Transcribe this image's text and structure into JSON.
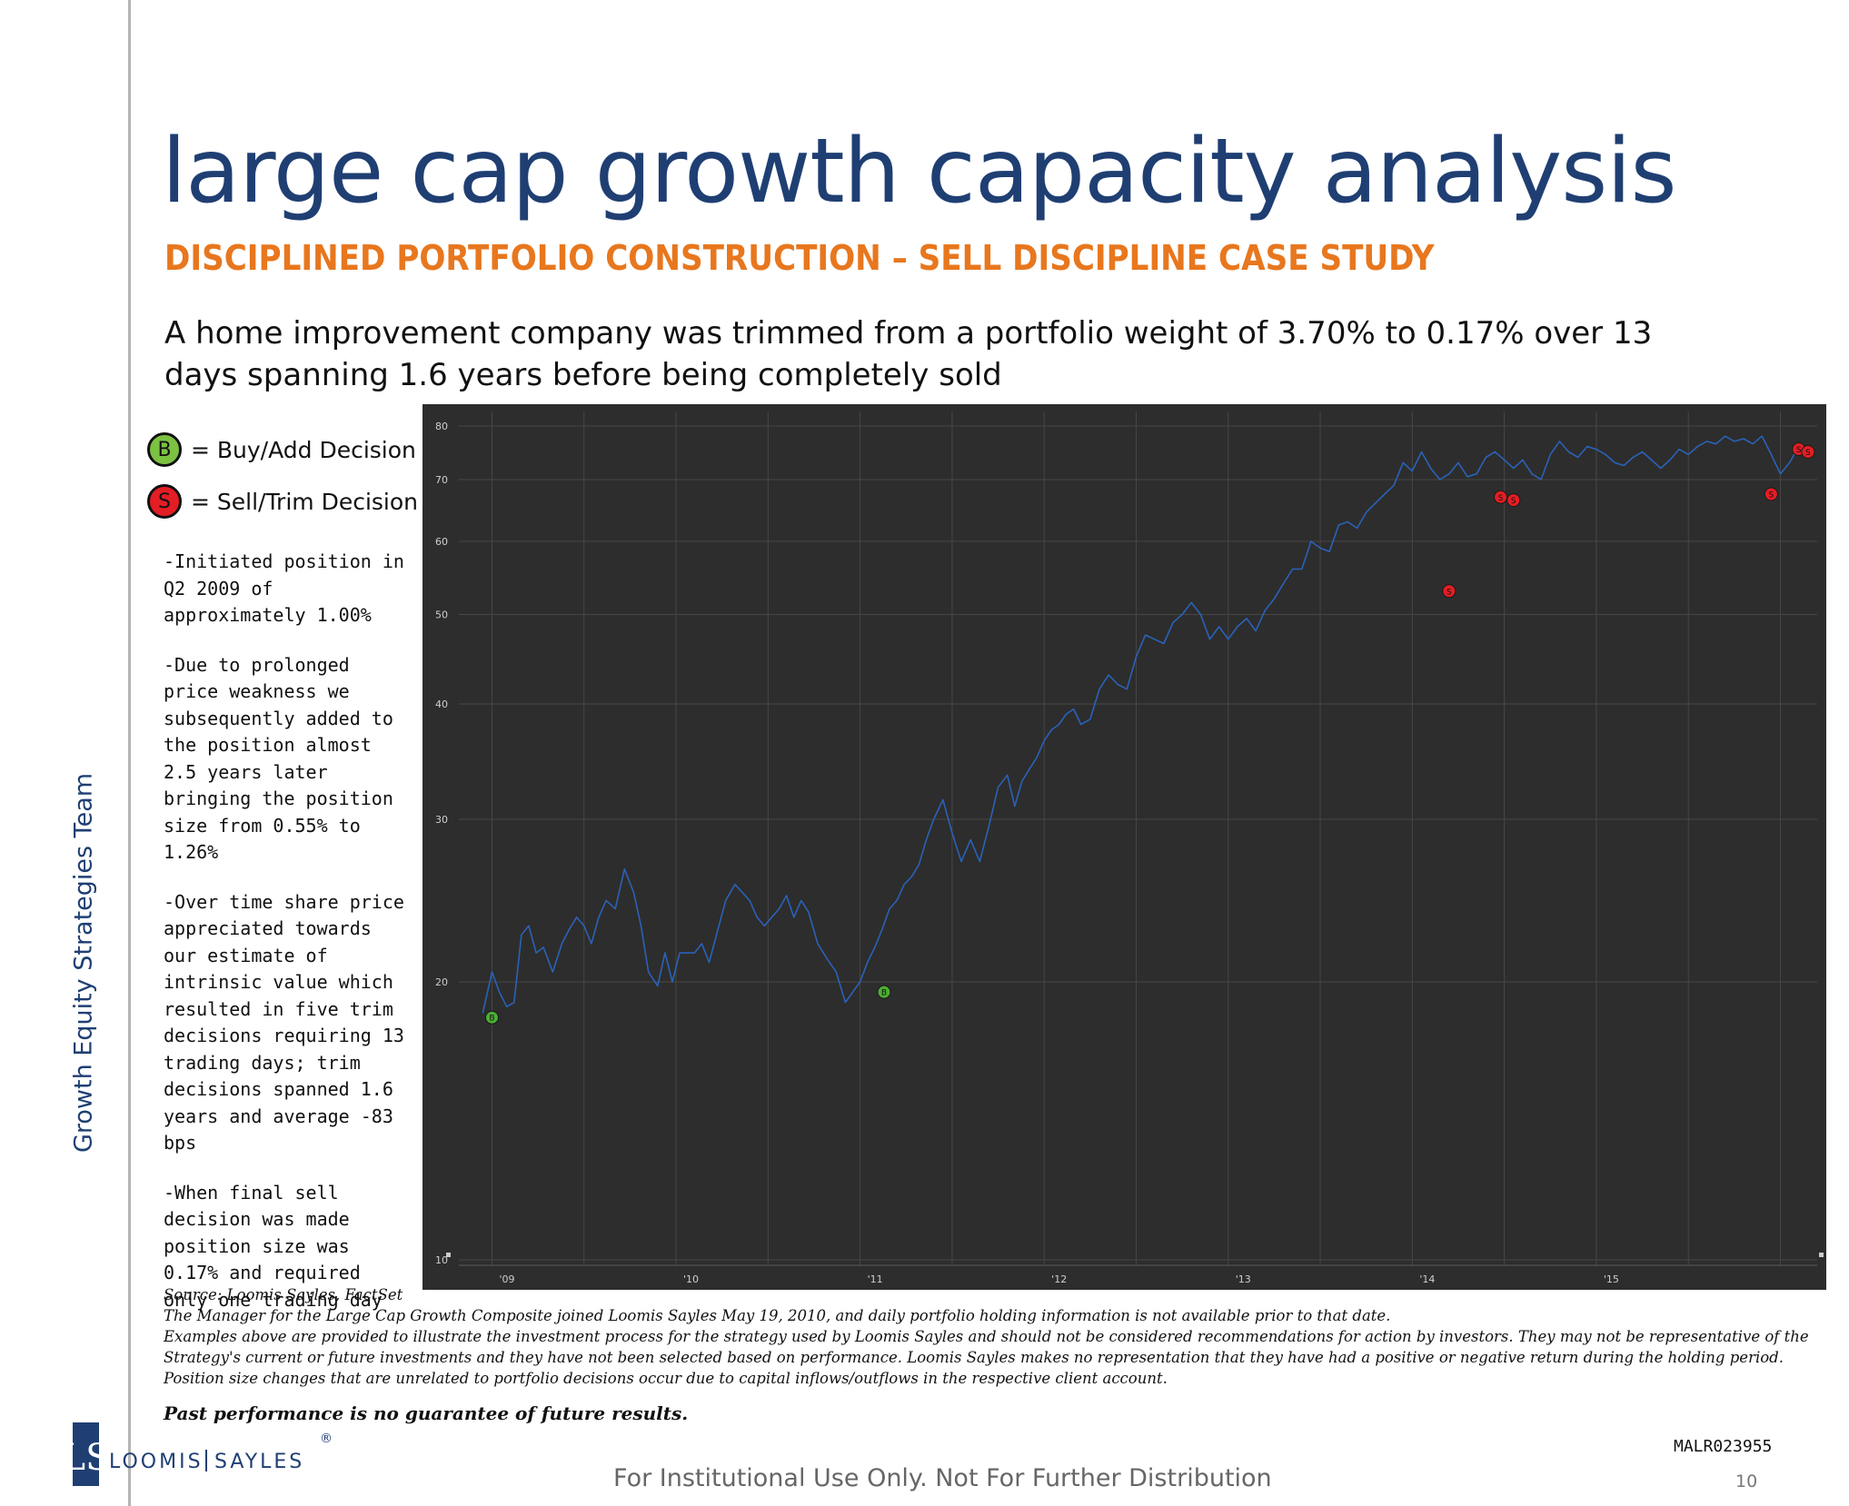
{
  "side_label": "Growth Equity Strategies Team",
  "title": "large cap growth capacity analysis",
  "subtitle": "DISCIPLINED PORTFOLIO CONSTRUCTION – SELL DISCIPLINE CASE STUDY",
  "headline": "A home improvement company was trimmed from a portfolio weight of 3.70% to 0.17% over 13 days spanning 1.6 years before being completely sold",
  "legend": [
    {
      "symbol": "B",
      "text": "= Buy/Add Decision",
      "color": "#7cc242"
    },
    {
      "symbol": "S",
      "text": "= Sell/Trim Decision",
      "color": "#e31e24"
    }
  ],
  "bullets": [
    "-Initiated position in Q2 2009 of approximately 1.00%",
    "-Due to prolonged price weakness we subsequently added to the position almost 2.5 years later bringing the position size from 0.55% to 1.26%",
    "-Over time share price appreciated towards our estimate of intrinsic value which resulted in five trim decisions requiring 13 trading days; trim decisions spanned 1.6 years and average -83 bps",
    "-When final sell decision was made position size was 0.17% and required only one trading day"
  ],
  "chart_data": {
    "type": "line",
    "y_scale": "log",
    "ylim": [
      10,
      80
    ],
    "yticks": [
      10,
      20,
      30,
      40,
      50,
      60,
      70,
      80
    ],
    "xticks": [
      "'09",
      "'10",
      "'11",
      "'12",
      "'13",
      "'14",
      "'15"
    ],
    "xlim": [
      2008.82,
      2016.2
    ],
    "grid": true,
    "colors": {
      "background": "#2d2d2d",
      "line": "#2a62b8",
      "grid": "#474747",
      "buy": "#4caf32",
      "sell": "#e31e24"
    },
    "series": [
      {
        "x": [
          2008.95,
          2009.0,
          2009.04,
          2009.08,
          2009.12,
          2009.16,
          2009.2,
          2009.24,
          2009.28,
          2009.33,
          2009.38,
          2009.42,
          2009.46,
          2009.5,
          2009.54,
          2009.58,
          2009.62,
          2009.67,
          2009.72,
          2009.77,
          2009.81,
          2009.85,
          2009.9,
          2009.94,
          2009.98,
          2010.02,
          2010.06,
          2010.1,
          2010.14,
          2010.18,
          2010.22,
          2010.27,
          2010.32,
          2010.36,
          2010.4,
          2010.44,
          2010.48,
          2010.52,
          2010.56,
          2010.6,
          2010.64,
          2010.68,
          2010.72,
          2010.77,
          2010.82,
          2010.87,
          2010.92,
          2010.96,
          2011.0,
          2011.04,
          2011.08,
          2011.12,
          2011.16,
          2011.2,
          2011.24,
          2011.28,
          2011.32,
          2011.36,
          2011.4,
          2011.45,
          2011.5,
          2011.55,
          2011.6,
          2011.65,
          2011.7,
          2011.75,
          2011.8,
          2011.84,
          2011.88,
          2011.92,
          2011.96,
          2012.0,
          2012.04,
          2012.08,
          2012.12,
          2012.16,
          2012.2,
          2012.25,
          2012.3,
          2012.35,
          2012.4,
          2012.45,
          2012.5,
          2012.55,
          2012.6,
          2012.65,
          2012.7,
          2012.75,
          2012.8,
          2012.85,
          2012.9,
          2012.95,
          2013.0,
          2013.05,
          2013.1,
          2013.15,
          2013.2,
          2013.25,
          2013.3,
          2013.35,
          2013.4,
          2013.45,
          2013.5,
          2013.55,
          2013.6,
          2013.65,
          2013.7,
          2013.75,
          2013.8,
          2013.85,
          2013.9,
          2013.95,
          2014.0,
          2014.05,
          2014.1,
          2014.15,
          2014.2,
          2014.25,
          2014.3,
          2014.35,
          2014.4,
          2014.45,
          2014.5,
          2014.55,
          2014.6,
          2014.65,
          2014.7,
          2014.75,
          2014.8,
          2014.85,
          2014.9,
          2014.95,
          2015.0,
          2015.05,
          2015.1,
          2015.15,
          2015.2,
          2015.25,
          2015.3,
          2015.35,
          2015.4,
          2015.45,
          2015.5,
          2015.55,
          2015.6,
          2015.65,
          2015.7,
          2015.75,
          2015.8,
          2015.85,
          2015.9,
          2015.95,
          2016.0,
          2016.05,
          2016.1,
          2016.12
        ],
        "y": [
          18.5,
          20.5,
          19.5,
          18.8,
          19.0,
          22.5,
          23.0,
          21.5,
          21.8,
          20.5,
          22.0,
          22.8,
          23.5,
          23.0,
          22.0,
          23.5,
          24.5,
          24.0,
          26.5,
          25.0,
          23.0,
          20.5,
          19.8,
          21.5,
          20.0,
          21.5,
          21.5,
          21.5,
          22.0,
          21.0,
          22.5,
          24.5,
          25.5,
          25.0,
          24.5,
          23.5,
          23.0,
          23.5,
          24.0,
          24.8,
          23.5,
          24.5,
          23.8,
          22.0,
          21.2,
          20.5,
          19.0,
          19.5,
          20.0,
          21.0,
          21.8,
          22.8,
          24.0,
          24.5,
          25.5,
          26.0,
          26.8,
          28.5,
          30.0,
          31.5,
          29.0,
          27.0,
          28.5,
          27.0,
          29.5,
          32.5,
          33.5,
          31.0,
          33.0,
          34.0,
          35.0,
          36.5,
          37.5,
          38.0,
          39.0,
          39.5,
          38.0,
          38.5,
          41.5,
          43.0,
          42.0,
          41.5,
          45.0,
          47.5,
          47.0,
          46.5,
          49.0,
          50.0,
          51.5,
          50.0,
          47.0,
          48.5,
          47.0,
          48.5,
          49.5,
          48.0,
          50.5,
          52.0,
          54.0,
          56.0,
          56.0,
          60.0,
          59.0,
          58.5,
          62.5,
          63.0,
          62.0,
          64.5,
          66.0,
          67.5,
          69.0,
          73.0,
          71.5,
          75.0,
          72.0,
          70.0,
          71.0,
          73.0,
          70.5,
          71.0,
          74.0,
          75.0,
          73.5,
          72.0,
          73.5,
          71.0,
          70.0,
          74.5,
          77.0,
          75.0,
          74.0,
          76.0,
          75.5,
          74.5,
          73.0,
          72.5,
          74.0,
          75.0,
          73.5,
          72.0,
          73.5,
          75.5,
          74.5,
          76.0,
          77.0,
          76.5,
          78.0,
          77.0,
          77.5,
          76.5,
          78.0,
          74.5,
          71.0,
          73.0,
          76.0,
          75.5
        ],
        "comment_note": ""
      }
    ],
    "markers": [
      {
        "type": "B",
        "x": 2009.0,
        "y": 18.3
      },
      {
        "type": "B",
        "x": 2011.13,
        "y": 19.5
      },
      {
        "type": "S",
        "x": 2014.2,
        "y": 53.0
      },
      {
        "type": "S",
        "x": 2014.48,
        "y": 67.0
      },
      {
        "type": "S",
        "x": 2014.55,
        "y": 66.5
      },
      {
        "type": "S",
        "x": 2015.95,
        "y": 67.5
      },
      {
        "type": "S",
        "x": 2016.1,
        "y": 75.5
      },
      {
        "type": "S",
        "x": 2016.15,
        "y": 75.0
      }
    ]
  },
  "footnotes": [
    "Source: Loomis Sayles, FactSet",
    "The Manager for the Large Cap Growth Composite joined Loomis Sayles May 19, 2010, and daily portfolio holding information is not available prior to that date.",
    "Examples above are provided to illustrate the investment process for the strategy used by Loomis Sayles and should not be considered recommendations for action by investors. They may not be representative of the Strategy's current or future investments and they have not been selected based on performance. Loomis Sayles makes no representation that they have had a positive or negative return during the holding period. Position size changes that are unrelated to portfolio decisions occur due to capital inflows/outflows in the respective client account."
  ],
  "past_performance": "Past performance is no guarantee of future results.",
  "doc_code": "MALR023955",
  "distribution": "For Institutional Use Only. Not For Further Distribution",
  "page_number": "10",
  "logo": {
    "mark": "LS",
    "name_left": "LOOMIS",
    "name_right": "SAYLES",
    "registered": "®",
    "color": "#1f3f73"
  }
}
